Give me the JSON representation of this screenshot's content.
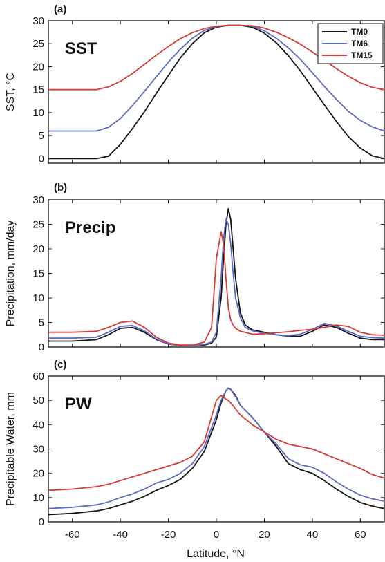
{
  "figure": {
    "x_label": "Latitude, °N",
    "x_ticks": [
      "-60",
      "-40",
      "-20",
      "0",
      "20",
      "40",
      "60"
    ]
  },
  "chart_data": [
    {
      "type": "line",
      "panel_label": "(a)",
      "inset_title": "SST",
      "ylabel": "SST, °C",
      "xlim": [
        -70,
        70
      ],
      "ylim": [
        -1,
        30
      ],
      "yticks": [
        "0",
        "5",
        "10",
        "15",
        "20",
        "25",
        "30"
      ],
      "legend": {
        "position": "top-right",
        "entries": [
          "TM0",
          "TM6",
          "TM15"
        ]
      },
      "colors": [
        "#111111",
        "#5b68c6",
        "#d63a32"
      ],
      "x": [
        -70,
        -60,
        -50,
        -45,
        -40,
        -35,
        -30,
        -25,
        -20,
        -15,
        -10,
        -5,
        0,
        5,
        10,
        15,
        20,
        25,
        30,
        35,
        40,
        45,
        50,
        55,
        60,
        65,
        70
      ],
      "series": [
        {
          "name": "TM0",
          "values": [
            0,
            0,
            0,
            0.5,
            3.1,
            6.5,
            10.2,
            14.2,
            18.1,
            21.9,
            25,
            27.4,
            28.6,
            29,
            29,
            28.6,
            27.3,
            25.2,
            22.4,
            19.1,
            15.4,
            11.7,
            8.1,
            4.8,
            2.3,
            0.6,
            0
          ]
        },
        {
          "name": "TM6",
          "values": [
            6,
            6,
            6,
            6.8,
            8.7,
            11.5,
            14.6,
            17.8,
            21,
            23.8,
            26.2,
            27.9,
            28.7,
            29,
            29,
            28.8,
            27.8,
            26.2,
            24.1,
            21.6,
            18.7,
            15.7,
            12.9,
            10.3,
            8.3,
            6.9,
            6
          ]
        },
        {
          "name": "TM15",
          "values": [
            15,
            15,
            15,
            15.6,
            16.8,
            18.5,
            20.5,
            22.5,
            24.4,
            26.1,
            27.4,
            28.3,
            28.8,
            29,
            29,
            28.9,
            28.4,
            27.5,
            26.3,
            24.9,
            23.2,
            21.4,
            19.6,
            17.9,
            16.5,
            15.5,
            15
          ]
        }
      ]
    },
    {
      "type": "line",
      "panel_label": "(b)",
      "inset_title": "Precip",
      "ylabel": "Precipitation, mm/day",
      "xlim": [
        -70,
        70
      ],
      "ylim": [
        0,
        30
      ],
      "yticks": [
        "0",
        "5",
        "10",
        "15",
        "20",
        "25",
        "30"
      ],
      "colors": [
        "#111111",
        "#5b68c6",
        "#d63a32"
      ],
      "x": [
        -70,
        -60,
        -50,
        -45,
        -40,
        -35,
        -30,
        -25,
        -20,
        -15,
        -10,
        -5,
        -2,
        0,
        2,
        3,
        4,
        5,
        6,
        7,
        8,
        10,
        12,
        15,
        20,
        25,
        30,
        35,
        40,
        45,
        50,
        55,
        60,
        65,
        70
      ],
      "series": [
        {
          "name": "TM0",
          "values": [
            1.2,
            1.2,
            1.5,
            2.5,
            3.8,
            4.0,
            3.0,
            1.5,
            0.6,
            0.3,
            0.3,
            0.4,
            0.8,
            2,
            10,
            18,
            25,
            28.2,
            26,
            20,
            14,
            7,
            4.5,
            3.5,
            3,
            2.5,
            2.2,
            2.2,
            3.2,
            4.5,
            4,
            2.8,
            1.8,
            1.5,
            1.5
          ]
        },
        {
          "name": "TM6",
          "values": [
            1.8,
            1.8,
            2,
            3,
            4.2,
            4.4,
            3.3,
            1.6,
            0.6,
            0.3,
            0.3,
            0.5,
            1,
            3,
            14,
            22,
            26,
            25,
            21,
            15,
            10,
            6,
            4,
            3.3,
            2.8,
            2.5,
            2.3,
            2.6,
            3.6,
            4.8,
            4.3,
            3.2,
            2.2,
            1.9,
            1.8
          ]
        },
        {
          "name": "TM15",
          "values": [
            3,
            3,
            3.2,
            4,
            5,
            5.3,
            4,
            2,
            0.8,
            0.4,
            0.4,
            1,
            4,
            18,
            23.5,
            21,
            14,
            8,
            5.5,
            4.5,
            3.8,
            3.2,
            3.0,
            2.6,
            2.7,
            2.9,
            3.1,
            3.4,
            3.6,
            4,
            4.5,
            4.2,
            3,
            2.5,
            2.4
          ]
        }
      ]
    },
    {
      "type": "line",
      "panel_label": "(c)",
      "inset_title": "PW",
      "ylabel": "Precipitable Water, mm",
      "xlim": [
        -70,
        70
      ],
      "ylim": [
        0,
        60
      ],
      "yticks": [
        "0",
        "10",
        "20",
        "30",
        "40",
        "50",
        "60"
      ],
      "colors": [
        "#111111",
        "#5b68c6",
        "#d63a32"
      ],
      "x": [
        -70,
        -60,
        -50,
        -45,
        -40,
        -35,
        -30,
        -25,
        -20,
        -15,
        -10,
        -5,
        0,
        2,
        4,
        5,
        6,
        8,
        10,
        15,
        20,
        25,
        30,
        35,
        40,
        45,
        50,
        55,
        60,
        65,
        70
      ],
      "series": [
        {
          "name": "TM0",
          "values": [
            3,
            3.5,
            4.5,
            5.5,
            7,
            8.5,
            10.5,
            13,
            15,
            17.5,
            22,
            29,
            42,
            49,
            54,
            55,
            54.5,
            52,
            48,
            43,
            37,
            31,
            24,
            21.5,
            20,
            17,
            13.5,
            10.5,
            8,
            6.5,
            5.5
          ]
        },
        {
          "name": "TM6",
          "values": [
            5.5,
            6,
            7,
            8.2,
            10,
            11.5,
            13.5,
            16,
            17.5,
            20,
            24,
            31,
            44,
            50,
            54,
            54.8,
            54.5,
            51.5,
            48,
            43,
            37,
            32,
            26,
            23.5,
            22.5,
            20,
            16.5,
            13.5,
            11,
            9.5,
            8.5
          ]
        },
        {
          "name": "TM15",
          "values": [
            13,
            13.5,
            14.5,
            15.5,
            17,
            18.5,
            20,
            21.5,
            23,
            24.5,
            27,
            33,
            50,
            52,
            50.5,
            50,
            49,
            46.5,
            44,
            40,
            37,
            34,
            32,
            31,
            30,
            28,
            26,
            24,
            22,
            19.5,
            18
          ]
        }
      ]
    }
  ]
}
